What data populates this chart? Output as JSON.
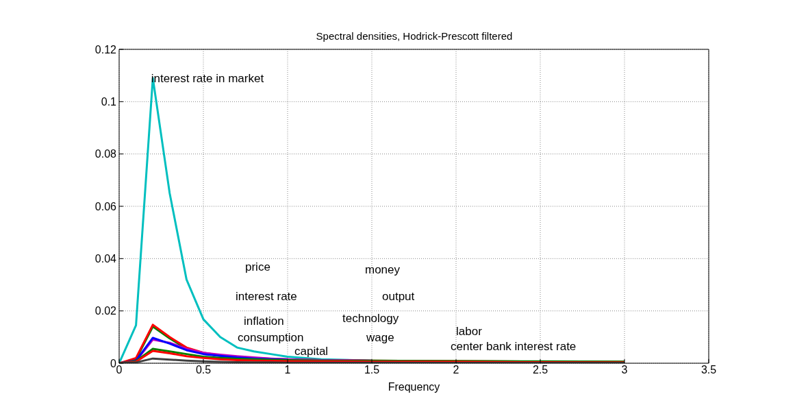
{
  "chart_data": {
    "type": "line",
    "title": "Spectral densities, Hodrick-Prescott filtered",
    "xlabel": "Frequency",
    "x": [
      0,
      0.1,
      0.2,
      0.3,
      0.4,
      0.5,
      0.6,
      0.7,
      0.8,
      0.9,
      1.0,
      1.2,
      1.5,
      2.0,
      2.5,
      3.0
    ],
    "series": [
      {
        "color": "#00bfbf",
        "values": [
          0,
          0.0145,
          0.109,
          0.065,
          0.032,
          0.0168,
          0.01,
          0.006,
          0.0045,
          0.0035,
          0.0025,
          0.0015,
          0.001,
          null,
          null,
          null
        ]
      },
      {
        "color": "#008000",
        "values": [
          0,
          0.0015,
          0.014,
          0.0095,
          0.0055,
          0.0038,
          0.0028,
          0.0022,
          0.0018,
          0.0016,
          0.0014,
          0.0012,
          0.001,
          0.0008,
          0.0006,
          0.0005
        ]
      },
      {
        "color": "#ff0000",
        "values": [
          0,
          0.002,
          0.0147,
          0.01,
          0.006,
          0.004,
          0.003,
          0.0025,
          0.002,
          0.0017,
          0.0015,
          0.0012,
          0.001,
          0.0008,
          0.0006,
          0.0005
        ]
      },
      {
        "color": "#bf00bf",
        "values": [
          0,
          0.0008,
          0.009,
          0.0078,
          0.0055,
          0.004,
          0.0033,
          0.0027,
          0.0022,
          0.0018,
          0.0015,
          0.0012,
          0.001,
          null,
          null,
          null
        ]
      },
      {
        "color": "#0000ff",
        "values": [
          0,
          0.001,
          0.0097,
          0.0075,
          0.005,
          0.0035,
          0.0028,
          0.0022,
          0.0018,
          0.0015,
          0.0013,
          null,
          null,
          null,
          null,
          null
        ]
      },
      {
        "color": "#008000",
        "values": [
          0,
          0.0008,
          0.0055,
          0.0045,
          0.0035,
          0.0025,
          0.002,
          0.0017,
          0.0015,
          0.0013,
          0.0012,
          0.001,
          0.0009,
          0.0008,
          0.0007,
          0.0006
        ]
      },
      {
        "color": "#ff0000",
        "values": [
          0,
          0.0006,
          0.0047,
          0.0038,
          0.0027,
          0.002,
          0.0015,
          0.0012,
          0.001,
          0.0009,
          0.0008,
          0.0007,
          0.0006,
          0.0005,
          0.0004,
          0.0003
        ]
      },
      {
        "color": "#404040",
        "values": [
          0,
          0.0003,
          0.0018,
          0.0014,
          0.001,
          0.0007,
          0.0005,
          0.0004,
          0.0003,
          0.0003,
          0.0002,
          0.0002,
          0.0002,
          0.0001,
          0.0001,
          0.0001
        ]
      }
    ],
    "annotations": [
      {
        "text": "interest rate in market",
        "x": 0.19,
        "y": 0.109
      },
      "price",
      "interest rate",
      "inflation",
      "consumption",
      "capital",
      "money",
      "output",
      "technology",
      "wage",
      "labor",
      "center bank interest rate"
    ],
    "xlim": [
      0,
      3.5
    ],
    "xticks": [
      0,
      0.5,
      1,
      1.5,
      2,
      2.5,
      3,
      3.5
    ],
    "ylim": [
      0,
      0.12
    ],
    "yticks": [
      0,
      0.02,
      0.04,
      0.06,
      0.08,
      0.1,
      0.12
    ],
    "grid": true,
    "marker": "none",
    "line_style": "solid"
  }
}
